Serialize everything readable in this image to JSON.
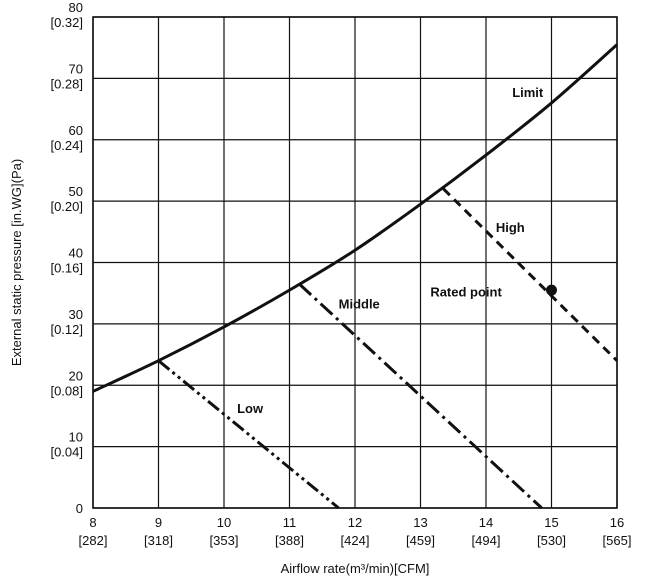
{
  "chart_data": {
    "type": "line",
    "xlabel": "Airflow rate(m³/min)[CFM]",
    "ylabel": "External static pressure  [in.WG](Pa)",
    "xlim": [
      8,
      16
    ],
    "ylim": [
      0,
      80
    ],
    "grid": true,
    "x_ticks": [
      {
        "value": 8,
        "label": "8",
        "sub": "[282]"
      },
      {
        "value": 9,
        "label": "9",
        "sub": "[318]"
      },
      {
        "value": 10,
        "label": "10",
        "sub": "[353]"
      },
      {
        "value": 11,
        "label": "11",
        "sub": "[388]"
      },
      {
        "value": 12,
        "label": "12",
        "sub": "[424]"
      },
      {
        "value": 13,
        "label": "13",
        "sub": "[459]"
      },
      {
        "value": 14,
        "label": "14",
        "sub": "[494]"
      },
      {
        "value": 15,
        "label": "15",
        "sub": "[530]"
      },
      {
        "value": 16,
        "label": "16",
        "sub": "[565]"
      }
    ],
    "y_ticks": [
      {
        "value": 80,
        "label": "80",
        "sub": "[0.32]"
      },
      {
        "value": 70,
        "label": "70",
        "sub": "[0.28]"
      },
      {
        "value": 60,
        "label": "60",
        "sub": "[0.24]"
      },
      {
        "value": 50,
        "label": "50",
        "sub": "[0.20]"
      },
      {
        "value": 40,
        "label": "40",
        "sub": "[0.16]"
      },
      {
        "value": 30,
        "label": "30",
        "sub": "[0.12]"
      },
      {
        "value": 20,
        "label": "20",
        "sub": "[0.08]"
      },
      {
        "value": 10,
        "label": "10",
        "sub": "[0.04]"
      },
      {
        "value": 0,
        "label": "0",
        "sub": ""
      }
    ],
    "series": [
      {
        "name": "Limit",
        "style": "solid",
        "points": [
          [
            8,
            19
          ],
          [
            9,
            24
          ],
          [
            10,
            29.5
          ],
          [
            11,
            35.5
          ],
          [
            12,
            42
          ],
          [
            13,
            49.5
          ],
          [
            14,
            57.5
          ],
          [
            15,
            66
          ],
          [
            16,
            75.5
          ]
        ]
      },
      {
        "name": "High",
        "style": "dashed",
        "points": [
          [
            13.35,
            52
          ],
          [
            16,
            24
          ]
        ]
      },
      {
        "name": "Middle",
        "style": "dash-dot",
        "points": [
          [
            11.15,
            36.5
          ],
          [
            14.85,
            0
          ]
        ]
      },
      {
        "name": "Low",
        "style": "dash-dot-dot",
        "points": [
          [
            9,
            24
          ],
          [
            11.75,
            0
          ]
        ]
      }
    ],
    "annotations": [
      {
        "text": "Limit",
        "x": 14.4,
        "y": 67
      },
      {
        "text": "High",
        "x": 14.15,
        "y": 45
      },
      {
        "text": "Middle",
        "x": 11.75,
        "y": 32.5
      },
      {
        "text": "Low",
        "x": 10.2,
        "y": 15.5
      },
      {
        "text": "Rated point",
        "x": 13.15,
        "y": 34.5
      }
    ],
    "rated_point": {
      "x": 15,
      "y": 35.5
    }
  }
}
